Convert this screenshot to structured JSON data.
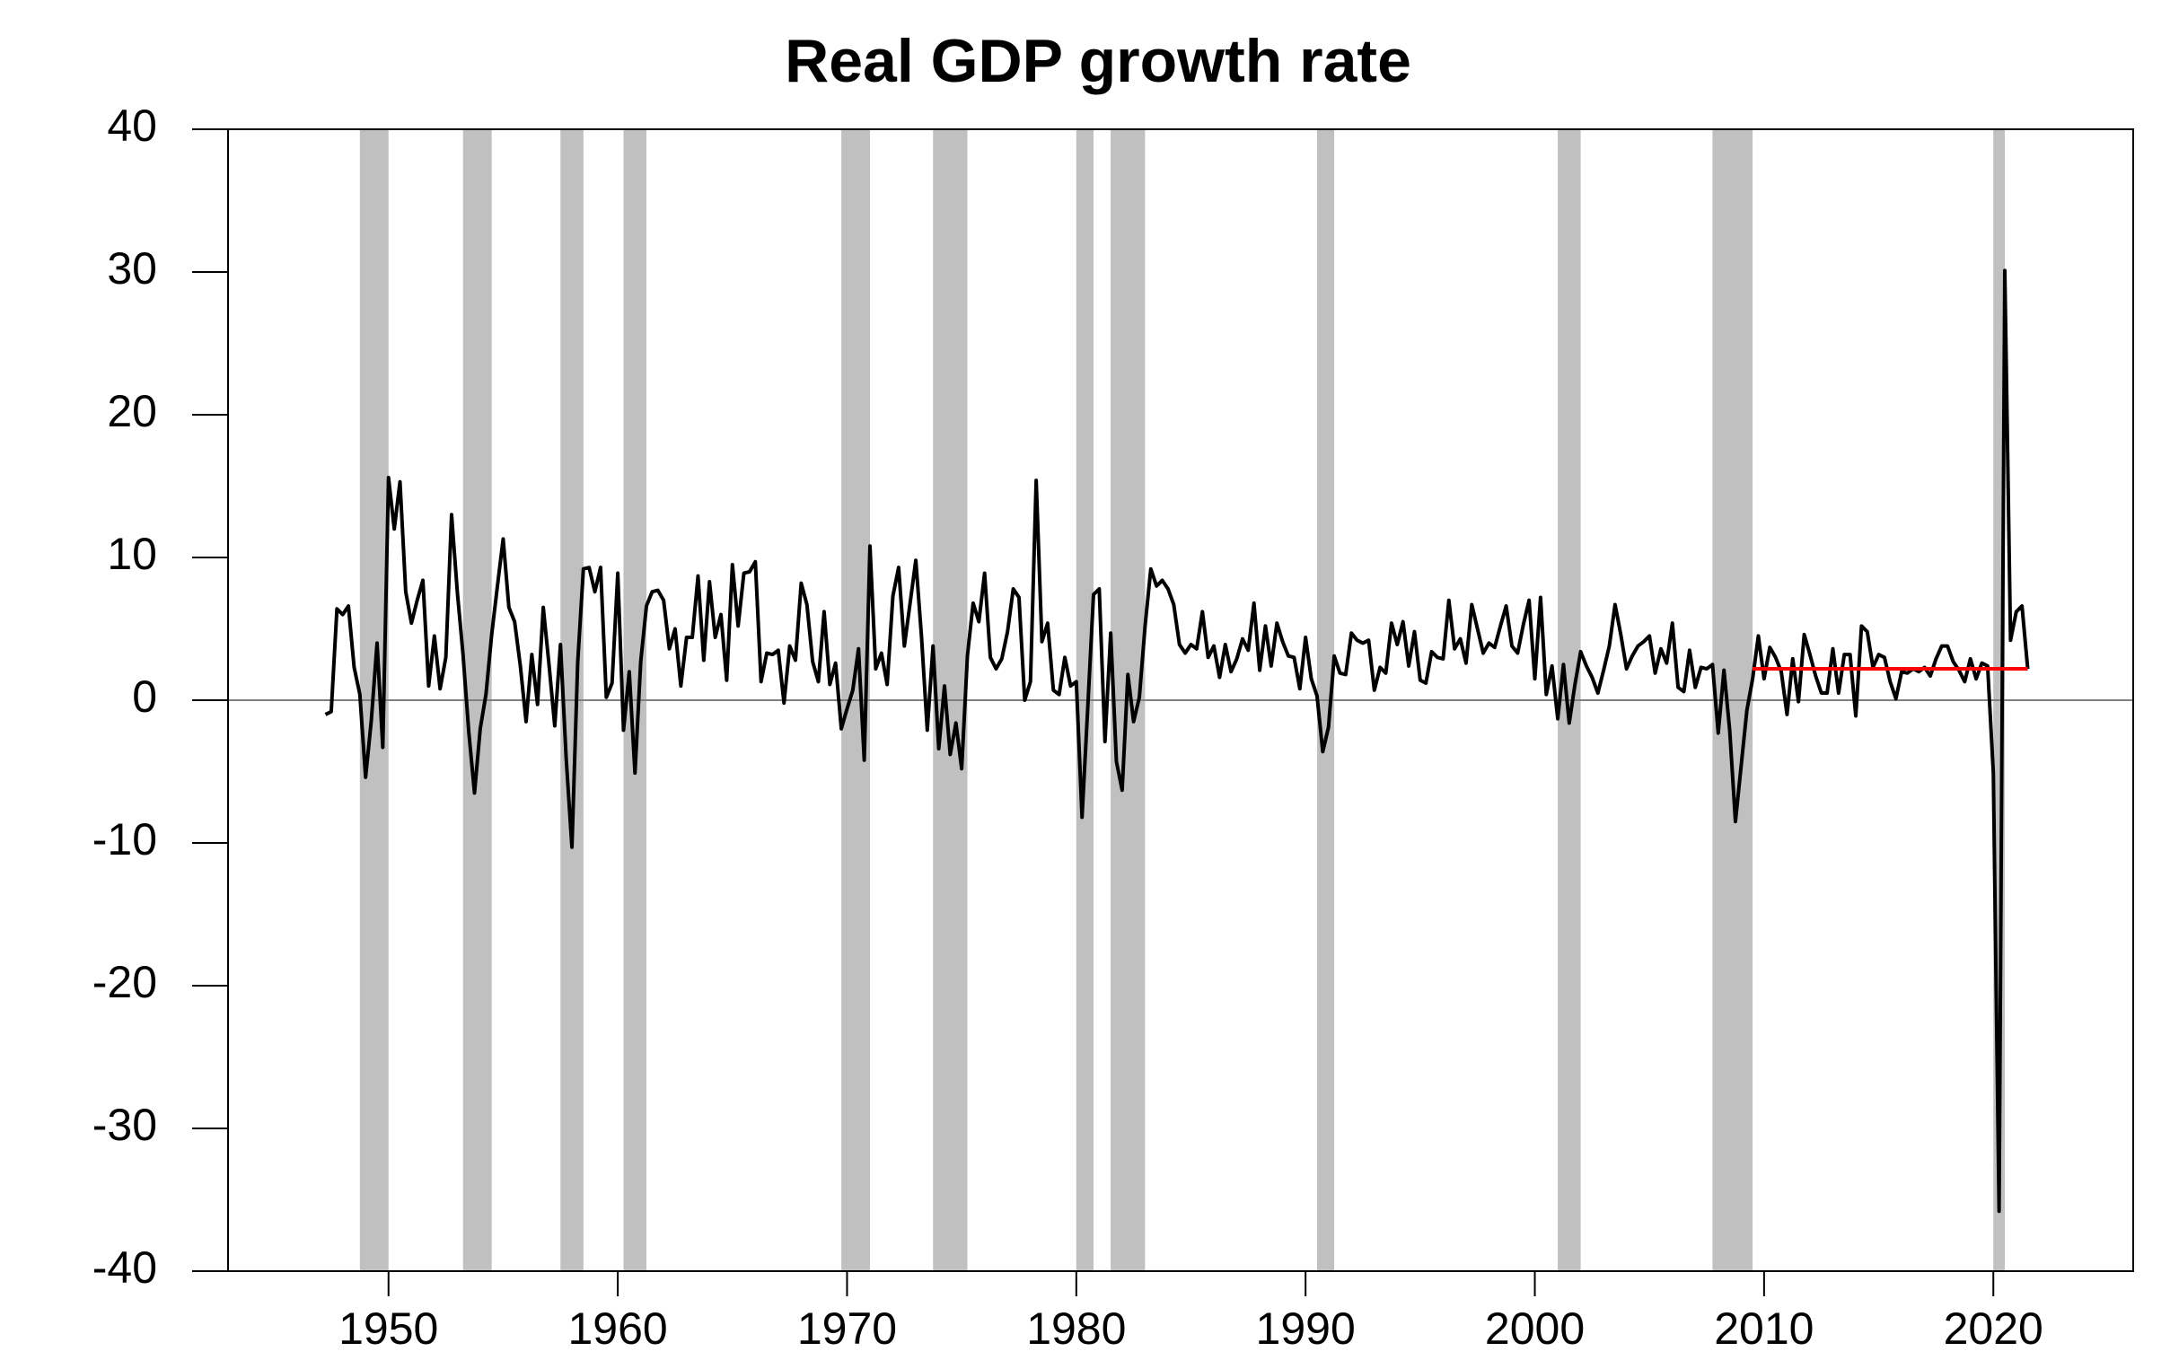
{
  "chart_data": {
    "type": "line",
    "title": "Real GDP growth rate",
    "xlim": [
      1943,
      2026.1
    ],
    "xticks": [
      1950,
      1960,
      1970,
      1980,
      1990,
      2000,
      2010,
      2020
    ],
    "ylim": [
      -40,
      40
    ],
    "yticks": [
      -40,
      -30,
      -20,
      -10,
      0,
      10,
      20,
      30,
      40
    ],
    "zero_line_color": "#808080",
    "shaded_color": "#c0c0c0",
    "shaded_periods": [
      [
        1948.75,
        1950
      ],
      [
        1953.25,
        1954.5
      ],
      [
        1957.5,
        1958.5
      ],
      [
        1960.25,
        1961.25
      ],
      [
        1969.75,
        1971
      ],
      [
        1973.75,
        1975.25
      ],
      [
        1980,
        1980.75
      ],
      [
        1981.5,
        1983
      ],
      [
        1990.5,
        1991.25
      ],
      [
        2001,
        2002
      ],
      [
        2007.75,
        2009.5
      ],
      [
        2020,
        2020.5
      ]
    ],
    "reference_line": {
      "x": [
        2009.5,
        2021.5
      ],
      "value": 2.2,
      "color": "#ff0000"
    },
    "x": [
      1947.25,
      1947.5,
      1947.75,
      1948,
      1948.25,
      1948.5,
      1948.75,
      1949,
      1949.25,
      1949.5,
      1949.75,
      1950,
      1950.25,
      1950.5,
      1950.75,
      1951,
      1951.25,
      1951.5,
      1951.75,
      1952,
      1952.25,
      1952.5,
      1952.75,
      1953,
      1953.25,
      1953.5,
      1953.75,
      1954,
      1954.25,
      1954.5,
      1954.75,
      1955,
      1955.25,
      1955.5,
      1955.75,
      1956,
      1956.25,
      1956.5,
      1956.75,
      1957,
      1957.25,
      1957.5,
      1957.75,
      1958,
      1958.25,
      1958.5,
      1958.75,
      1959,
      1959.25,
      1959.5,
      1959.75,
      1960,
      1960.25,
      1960.5,
      1960.75,
      1961,
      1961.25,
      1961.5,
      1961.75,
      1962,
      1962.25,
      1962.5,
      1962.75,
      1963,
      1963.25,
      1963.5,
      1963.75,
      1964,
      1964.25,
      1964.5,
      1964.75,
      1965,
      1965.25,
      1965.5,
      1965.75,
      1966,
      1966.25,
      1966.5,
      1966.75,
      1967,
      1967.25,
      1967.5,
      1967.75,
      1968,
      1968.25,
      1968.5,
      1968.75,
      1969,
      1969.25,
      1969.5,
      1969.75,
      1970,
      1970.25,
      1970.5,
      1970.75,
      1971,
      1971.25,
      1971.5,
      1971.75,
      1972,
      1972.25,
      1972.5,
      1972.75,
      1973,
      1973.25,
      1973.5,
      1973.75,
      1974,
      1974.25,
      1974.5,
      1974.75,
      1975,
      1975.25,
      1975.5,
      1975.75,
      1976,
      1976.25,
      1976.5,
      1976.75,
      1977,
      1977.25,
      1977.5,
      1977.75,
      1978,
      1978.25,
      1978.5,
      1978.75,
      1979,
      1979.25,
      1979.5,
      1979.75,
      1980,
      1980.25,
      1980.5,
      1980.75,
      1981,
      1981.25,
      1981.5,
      1981.75,
      1982,
      1982.25,
      1982.5,
      1982.75,
      1983,
      1983.25,
      1983.5,
      1983.75,
      1984,
      1984.25,
      1984.5,
      1984.75,
      1985,
      1985.25,
      1985.5,
      1985.75,
      1986,
      1986.25,
      1986.5,
      1986.75,
      1987,
      1987.25,
      1987.5,
      1987.75,
      1988,
      1988.25,
      1988.5,
      1988.75,
      1989,
      1989.25,
      1989.5,
      1989.75,
      1990,
      1990.25,
      1990.5,
      1990.75,
      1991,
      1991.25,
      1991.5,
      1991.75,
      1992,
      1992.25,
      1992.5,
      1992.75,
      1993,
      1993.25,
      1993.5,
      1993.75,
      1994,
      1994.25,
      1994.5,
      1994.75,
      1995,
      1995.25,
      1995.5,
      1995.75,
      1996,
      1996.25,
      1996.5,
      1996.75,
      1997,
      1997.25,
      1997.5,
      1997.75,
      1998,
      1998.25,
      1998.5,
      1998.75,
      1999,
      1999.25,
      1999.5,
      1999.75,
      2000,
      2000.25,
      2000.5,
      2000.75,
      2001,
      2001.25,
      2001.5,
      2001.75,
      2002,
      2002.25,
      2002.5,
      2002.75,
      2003,
      2003.25,
      2003.5,
      2003.75,
      2004,
      2004.25,
      2004.5,
      2004.75,
      2005,
      2005.25,
      2005.5,
      2005.75,
      2006,
      2006.25,
      2006.5,
      2006.75,
      2007,
      2007.25,
      2007.5,
      2007.75,
      2008,
      2008.25,
      2008.5,
      2008.75,
      2009,
      2009.25,
      2009.5,
      2009.75,
      2010,
      2010.25,
      2010.5,
      2010.75,
      2011,
      2011.25,
      2011.5,
      2011.75,
      2012,
      2012.25,
      2012.5,
      2012.75,
      2013,
      2013.25,
      2013.5,
      2013.75,
      2014,
      2014.25,
      2014.5,
      2014.75,
      2015,
      2015.25,
      2015.5,
      2015.75,
      2016,
      2016.25,
      2016.5,
      2016.75,
      2017,
      2017.25,
      2017.5,
      2017.75,
      2018,
      2018.25,
      2018.5,
      2018.75,
      2019,
      2019.25,
      2019.5,
      2019.75,
      2020,
      2020.25,
      2020.5,
      2020.75,
      2021,
      2021.25,
      2021.5
    ],
    "series": [
      {
        "color": "#000000",
        "values": [
          -1.0,
          -0.8,
          6.4,
          6.0,
          6.6,
          2.3,
          0.4,
          -5.4,
          -1.4,
          4.0,
          -3.3,
          15.6,
          12.0,
          15.3,
          7.6,
          5.4,
          7.0,
          8.4,
          1.0,
          4.5,
          0.8,
          3.0,
          13.0,
          7.6,
          3.2,
          -2.2,
          -6.5,
          -2.0,
          0.4,
          4.6,
          8.0,
          11.3,
          6.5,
          5.5,
          2.4,
          -1.5,
          3.2,
          -0.3,
          6.5,
          2.5,
          -1.8,
          3.9,
          -4.1,
          -10.3,
          2.6,
          9.2,
          9.3,
          7.6,
          9.3,
          0.2,
          1.2,
          8.9,
          -2.1,
          2.0,
          -5.1,
          2.7,
          6.6,
          7.6,
          7.7,
          7.0,
          3.6,
          5.0,
          1.0,
          4.4,
          4.4,
          8.7,
          2.8,
          8.3,
          4.4,
          6.0,
          1.4,
          9.5,
          5.2,
          8.9,
          9.0,
          9.7,
          1.3,
          3.3,
          3.2,
          3.5,
          -0.2,
          3.8,
          2.8,
          8.2,
          6.7,
          2.7,
          1.3,
          6.2,
          1.1,
          2.6,
          -2.0,
          -0.6,
          0.7,
          3.6,
          -4.2,
          10.8,
          2.2,
          3.3,
          1.1,
          7.3,
          9.3,
          3.8,
          6.8,
          9.8,
          4.4,
          -2.1,
          3.8,
          -3.4,
          1.0,
          -3.8,
          -1.6,
          -4.8,
          3.1,
          6.8,
          5.5,
          8.9,
          3.0,
          2.2,
          2.9,
          4.8,
          7.8,
          7.2,
          0.0,
          1.3,
          15.4,
          4.1,
          5.4,
          0.7,
          0.4,
          3.0,
          1.0,
          1.3,
          -8.2,
          -0.5,
          7.4,
          7.8,
          -2.9,
          4.7,
          -4.3,
          -6.3,
          1.8,
          -1.5,
          0.2,
          5.2,
          9.2,
          8.0,
          8.4,
          7.8,
          6.7,
          3.9,
          3.3,
          3.9,
          3.6,
          6.2,
          3.0,
          3.8,
          1.6,
          3.9,
          2.0,
          2.9,
          4.3,
          3.5,
          6.8,
          2.1,
          5.2,
          2.4,
          5.4,
          4.1,
          3.1,
          3.0,
          0.8,
          4.4,
          1.5,
          0.3,
          -3.6,
          -1.9,
          3.1,
          1.9,
          1.8,
          4.7,
          4.2,
          4.0,
          4.2,
          0.7,
          2.3,
          1.9,
          5.4,
          3.9,
          5.5,
          2.4,
          4.8,
          1.4,
          1.2,
          3.4,
          3.0,
          2.9,
          7.0,
          3.6,
          4.3,
          2.6,
          6.7,
          5.0,
          3.3,
          4.0,
          3.7,
          5.2,
          6.6,
          3.8,
          3.3,
          5.3,
          7.0,
          1.5,
          7.2,
          0.4,
          2.4,
          -1.3,
          2.5,
          -1.6,
          1.1,
          3.4,
          2.4,
          1.6,
          0.5,
          2.1,
          3.8,
          6.7,
          4.6,
          2.2,
          3.1,
          3.8,
          4.1,
          4.5,
          1.9,
          3.6,
          2.6,
          5.4,
          0.9,
          0.6,
          3.5,
          0.9,
          2.3,
          2.2,
          2.5,
          -2.3,
          2.1,
          -2.1,
          -8.5,
          -4.6,
          -0.7,
          1.5,
          4.5,
          1.5,
          3.7,
          3.0,
          2.0,
          -1.0,
          2.9,
          -0.1,
          4.6,
          3.2,
          1.7,
          0.5,
          0.5,
          3.6,
          0.5,
          3.2,
          3.2,
          -1.1,
          5.2,
          4.8,
          2.3,
          3.2,
          3.0,
          1.3,
          0.1,
          2.0,
          1.9,
          2.2,
          2.0,
          2.3,
          1.7,
          2.9,
          3.8,
          3.8,
          2.7,
          2.1,
          1.3,
          2.9,
          1.5,
          2.6,
          2.4,
          -5.1,
          -35.8,
          30.1,
          4.2,
          6.2,
          6.6,
          2.2
        ]
      }
    ]
  }
}
